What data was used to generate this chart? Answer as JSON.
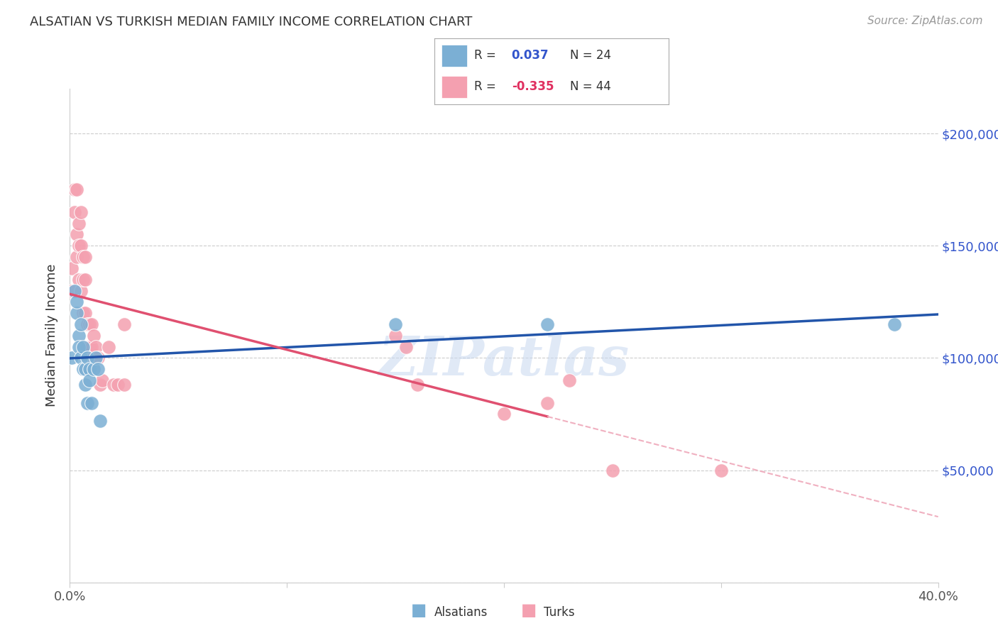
{
  "title": "ALSATIAN VS TURKISH MEDIAN FAMILY INCOME CORRELATION CHART",
  "source": "Source: ZipAtlas.com",
  "ylabel": "Median Family Income",
  "xlim": [
    0.0,
    0.4
  ],
  "ylim": [
    0,
    220000
  ],
  "background_color": "#ffffff",
  "watermark": "ZIPatlas",
  "legend_color1": "#7bafd4",
  "legend_color2": "#f4a0b0",
  "alsatians_color": "#7bafd4",
  "turks_color": "#f4a0b0",
  "trendline_alsatians_color": "#2255aa",
  "trendline_turks_color": "#e05070",
  "trendline_turks_ext_color": "#f0b0c0",
  "alsatians_x": [
    0.001,
    0.002,
    0.003,
    0.003,
    0.004,
    0.004,
    0.005,
    0.005,
    0.006,
    0.006,
    0.007,
    0.007,
    0.008,
    0.008,
    0.009,
    0.009,
    0.01,
    0.011,
    0.012,
    0.013,
    0.014,
    0.15,
    0.22,
    0.38
  ],
  "alsatians_y": [
    100000,
    130000,
    120000,
    125000,
    110000,
    105000,
    100000,
    115000,
    95000,
    105000,
    88000,
    95000,
    80000,
    100000,
    95000,
    90000,
    80000,
    95000,
    100000,
    95000,
    72000,
    115000,
    115000,
    115000
  ],
  "turks_x": [
    0.001,
    0.001,
    0.002,
    0.002,
    0.003,
    0.003,
    0.003,
    0.004,
    0.004,
    0.004,
    0.005,
    0.005,
    0.005,
    0.006,
    0.006,
    0.006,
    0.007,
    0.007,
    0.007,
    0.008,
    0.008,
    0.009,
    0.009,
    0.01,
    0.01,
    0.011,
    0.011,
    0.012,
    0.013,
    0.014,
    0.015,
    0.018,
    0.02,
    0.022,
    0.025,
    0.025,
    0.15,
    0.155,
    0.16,
    0.2,
    0.22,
    0.23,
    0.25,
    0.3
  ],
  "turks_y": [
    130000,
    140000,
    165000,
    175000,
    175000,
    155000,
    145000,
    160000,
    150000,
    135000,
    165000,
    150000,
    130000,
    145000,
    135000,
    120000,
    145000,
    135000,
    120000,
    115000,
    105000,
    115000,
    105000,
    115000,
    105000,
    100000,
    110000,
    105000,
    100000,
    88000,
    90000,
    105000,
    88000,
    88000,
    115000,
    88000,
    110000,
    105000,
    88000,
    75000,
    80000,
    90000,
    50000,
    50000
  ],
  "trendline_split_x": 0.22,
  "ytick_right": [
    50000,
    100000,
    150000,
    200000
  ],
  "ytick_right_labels": [
    "$50,000",
    "$100,000",
    "$150,000",
    "$200,000"
  ],
  "xticks": [
    0.0,
    0.1,
    0.2,
    0.3,
    0.4
  ],
  "xtick_labels": [
    "0.0%",
    "",
    "",
    "",
    "40.0%"
  ]
}
